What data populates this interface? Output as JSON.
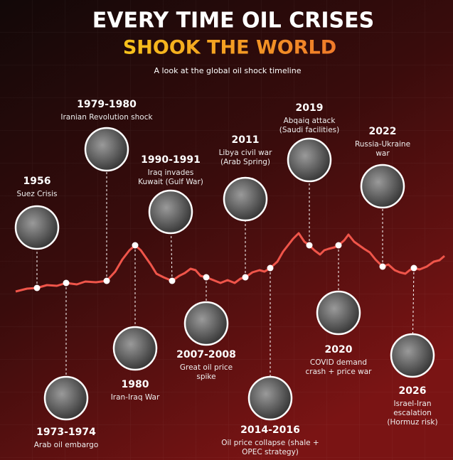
{
  "header": {
    "title": "EVERY TIME OIL CRISES",
    "highlight": "SHOOK THE WORLD",
    "subtitle": "A look at the global oil shock timeline"
  },
  "events": [
    {
      "year": "1956",
      "lines": [
        "Suez Crisis"
      ]
    },
    {
      "year": "1973-1974",
      "lines": [
        "Arab oil embargo"
      ]
    },
    {
      "year": "1979-1980",
      "lines": [
        "Iranian Revolution shock"
      ]
    },
    {
      "year": "1980",
      "lines": [
        "Iran-Iraq War"
      ]
    },
    {
      "year": "1990-1991",
      "lines": [
        "Iraq invades",
        "Kuwait (Gulf War)"
      ]
    },
    {
      "year": "2007-2008",
      "lines": [
        "Great oil price",
        "spike"
      ]
    },
    {
      "year": "2011",
      "lines": [
        "Libya civil war",
        "(Arab Spring)"
      ]
    },
    {
      "year": "2014-2016",
      "lines": [
        "Oil price collapse (shale +",
        "OPEC strategy)"
      ]
    },
    {
      "year": "2019",
      "lines": [
        "Abqaiq attack",
        "(Saudi facilities)"
      ]
    },
    {
      "year": "2020",
      "lines": [
        "COVID demand",
        "crash + price war"
      ]
    },
    {
      "year": "2022",
      "lines": [
        "Russia-Ukraine",
        "war"
      ]
    },
    {
      "year": "2026",
      "lines": [
        "Israel-Iran",
        "escalation",
        "(Hormuz risk)"
      ]
    }
  ]
}
